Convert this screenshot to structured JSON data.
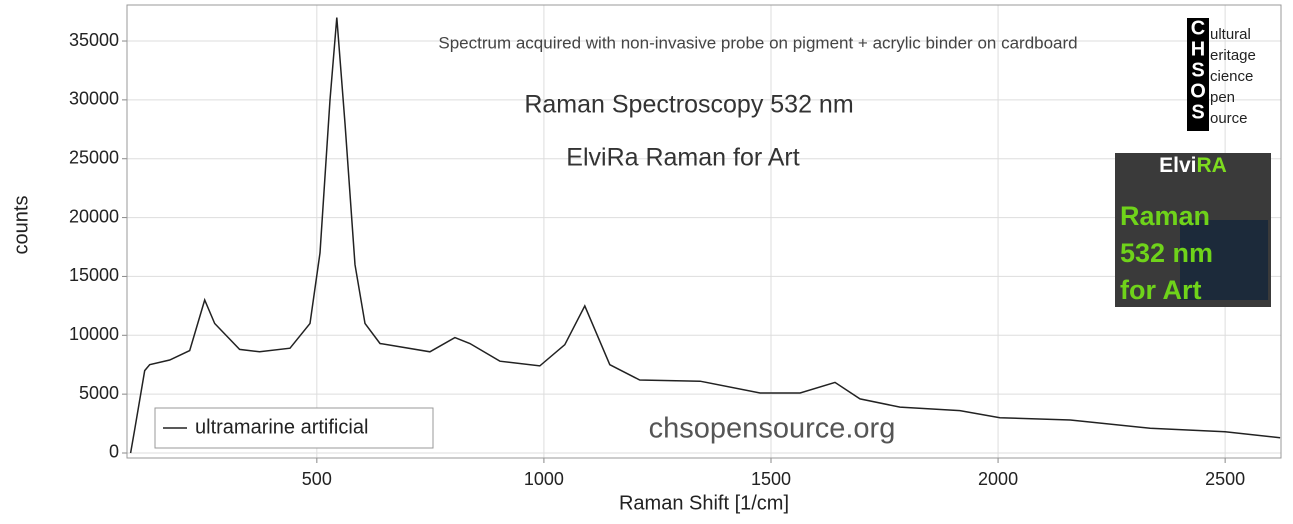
{
  "chart_data": {
    "type": "line",
    "x_label": "Raman Shift [1/cm]",
    "y_label": "counts",
    "annotations": [
      "Spectrum acquired with non-invasive probe on pigment + acrylic binder on cardboard",
      "Raman Spectroscopy 532 nm",
      "ElviRa Raman for Art",
      "chsopensource.org"
    ],
    "logo": {
      "letters": [
        "C",
        "H",
        "S",
        "O",
        "S"
      ],
      "words": [
        "ultural",
        "eritage",
        "cience",
        "pen",
        "ource"
      ]
    },
    "badge": {
      "title_parts": [
        "Elvi",
        "RA"
      ],
      "lines": [
        "Raman",
        "532 nm",
        "for Art"
      ]
    },
    "xlim": [
      82,
      2623
    ],
    "ylim": [
      -425,
      38060
    ],
    "xticks": [
      500,
      1000,
      1500,
      2000,
      2500
    ],
    "yticks": [
      0,
      5000,
      10000,
      15000,
      20000,
      25000,
      30000,
      35000
    ],
    "grid": true,
    "legend": "lower left",
    "series": [
      {
        "name": "ultramarine artificial",
        "color": "#222222",
        "x": [
          90,
          99,
          121,
          132,
          176,
          220,
          253,
          275,
          330,
          374,
          441,
          485,
          507,
          529,
          544,
          562,
          584,
          606,
          639,
          749,
          804,
          837,
          903,
          991,
          1046,
          1090,
          1112,
          1145,
          1211,
          1344,
          1476,
          1564,
          1641,
          1696,
          1784,
          1916,
          2004,
          2159,
          2335,
          2500,
          2621
        ],
        "values": [
          0,
          2000,
          7000,
          7500,
          7900,
          8700,
          13000,
          11000,
          8800,
          8600,
          8900,
          11000,
          17000,
          30000,
          37000,
          28000,
          16000,
          11000,
          9300,
          8600,
          9800,
          9300,
          7800,
          7400,
          9200,
          12500,
          10500,
          7500,
          6200,
          6100,
          5100,
          5100,
          6000,
          4600,
          3900,
          3600,
          3000,
          2800,
          2100,
          1800,
          1300
        ]
      }
    ]
  }
}
